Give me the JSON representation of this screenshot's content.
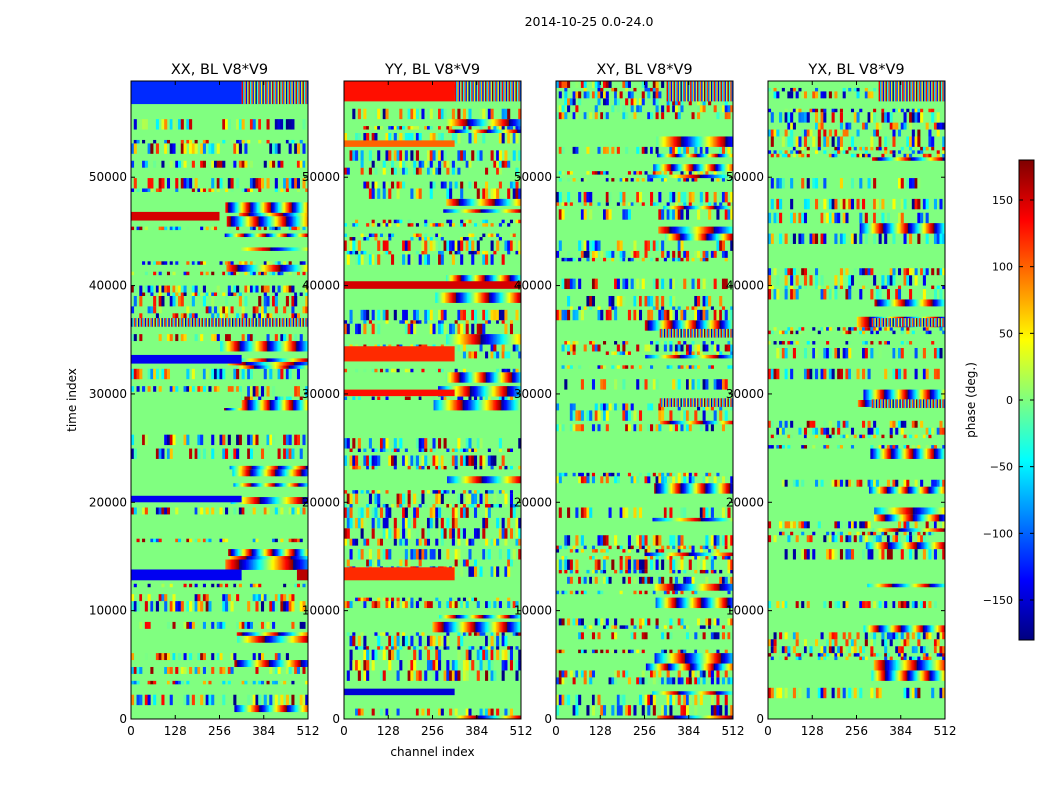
{
  "figure": {
    "suptitle": "2014-10-25 0.0-24.0"
  },
  "chart_data": [
    {
      "type": "heatmap",
      "title": "XX, BL V8*V9",
      "xlabel": "",
      "ylabel": "time index",
      "xlim": [
        0,
        512
      ],
      "ylim": [
        0,
        58880
      ],
      "xticks": [
        0,
        128,
        256,
        384,
        512
      ],
      "yticks": [
        0,
        10000,
        20000,
        30000,
        40000,
        50000
      ],
      "value_label": "phase (deg.)",
      "value_range": [
        -180,
        180
      ],
      "bands": [
        {
          "t0": 56750,
          "t1": 58880,
          "c0": 0,
          "c1": 320,
          "phase": -120
        },
        {
          "t0": 56750,
          "t1": 58880,
          "c0": 320,
          "c1": 512,
          "phase": "wrapped"
        },
        {
          "t0": 46000,
          "t1": 46800,
          "c0": 0,
          "c1": 256,
          "phase": 150
        },
        {
          "t0": 36200,
          "t1": 37000,
          "c0": 0,
          "c1": 512,
          "phase": "wrapped"
        },
        {
          "t0": 32800,
          "t1": 33600,
          "c0": 0,
          "c1": 320,
          "phase": -140
        },
        {
          "t0": 28700,
          "t1": 30200,
          "c0": 0,
          "c1": 320,
          "phase": 0
        },
        {
          "t0": 20000,
          "t1": 20600,
          "c0": 0,
          "c1": 320,
          "phase": -140
        },
        {
          "t0": 12800,
          "t1": 13800,
          "c0": 0,
          "c1": 320,
          "phase": -140
        },
        {
          "t0": 12800,
          "t1": 13800,
          "c0": 480,
          "c1": 512,
          "phase": 160
        }
      ]
    },
    {
      "type": "heatmap",
      "title": "YY, BL V8*V9",
      "xlabel": "channel index",
      "ylabel": "",
      "xlim": [
        0,
        512
      ],
      "ylim": [
        0,
        58880
      ],
      "xticks": [
        0,
        128,
        256,
        384,
        512
      ],
      "yticks": [
        0,
        10000,
        20000,
        30000,
        40000,
        50000
      ],
      "value_label": "phase (deg.)",
      "value_range": [
        -180,
        180
      ],
      "bands": [
        {
          "t0": 57000,
          "t1": 58880,
          "c0": 0,
          "c1": 320,
          "phase": 130
        },
        {
          "t0": 57000,
          "t1": 58880,
          "c0": 320,
          "c1": 512,
          "phase": "wrapped"
        },
        {
          "t0": 52800,
          "t1": 53400,
          "c0": 0,
          "c1": 320,
          "phase": 100
        },
        {
          "t0": 39700,
          "t1": 40400,
          "c0": 0,
          "c1": 512,
          "phase": 150
        },
        {
          "t0": 33000,
          "t1": 34400,
          "c0": 0,
          "c1": 320,
          "phase": 120
        },
        {
          "t0": 29800,
          "t1": 30400,
          "c0": 0,
          "c1": 320,
          "phase": 130
        },
        {
          "t0": 12800,
          "t1": 14000,
          "c0": 0,
          "c1": 320,
          "phase": 120
        },
        {
          "t0": 2200,
          "t1": 2800,
          "c0": 0,
          "c1": 320,
          "phase": -150
        }
      ]
    },
    {
      "type": "heatmap",
      "title": "XY, BL V8*V9",
      "xlabel": "",
      "ylabel": "",
      "xlim": [
        0,
        512
      ],
      "ylim": [
        0,
        58880
      ],
      "xticks": [
        0,
        128,
        256,
        384,
        512
      ],
      "yticks": [
        0,
        10000,
        20000,
        30000,
        40000,
        50000
      ],
      "value_label": "phase (deg.)",
      "value_range": [
        -180,
        180
      ],
      "bands": [
        {
          "t0": 57000,
          "t1": 58880,
          "c0": 320,
          "c1": 512,
          "phase": "wrapped"
        },
        {
          "t0": 28800,
          "t1": 29600,
          "c0": 300,
          "c1": 512,
          "phase": "wrapped"
        },
        {
          "t0": 35200,
          "t1": 36000,
          "c0": 300,
          "c1": 512,
          "phase": "wrapped"
        }
      ]
    },
    {
      "type": "heatmap",
      "title": "YX, BL V8*V9",
      "xlabel": "",
      "ylabel": "",
      "xlim": [
        0,
        512
      ],
      "ylim": [
        0,
        58880
      ],
      "xticks": [
        0,
        128,
        256,
        384,
        512
      ],
      "yticks": [
        0,
        10000,
        20000,
        30000,
        40000,
        50000
      ],
      "value_label": "phase (deg.)",
      "value_range": [
        -180,
        180
      ],
      "bands": [
        {
          "t0": 57000,
          "t1": 58880,
          "c0": 320,
          "c1": 512,
          "phase": "wrapped"
        },
        {
          "t0": 28700,
          "t1": 29500,
          "c0": 300,
          "c1": 512,
          "phase": "wrapped"
        },
        {
          "t0": 36200,
          "t1": 37000,
          "c0": 300,
          "c1": 512,
          "phase": "wrapped"
        }
      ]
    }
  ],
  "colorbar": {
    "label": "phase (deg.)",
    "range": [
      -180,
      180
    ],
    "ticks": [
      -150,
      -100,
      -50,
      0,
      50,
      100,
      150
    ],
    "tick_labels": [
      "−150",
      "−100",
      "−50",
      "0",
      "50",
      "100",
      "150"
    ],
    "colormap": "jet",
    "jet_stops": [
      "#00007f",
      "#0000ff",
      "#007fff",
      "#00ffff",
      "#7fff7f",
      "#ffff00",
      "#ff7f00",
      "#ff0000",
      "#7f0000"
    ]
  },
  "tick_label_font_size_hint": "small"
}
